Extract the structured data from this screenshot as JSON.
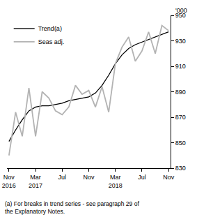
{
  "chart_data": {
    "type": "line",
    "y_label": "'000",
    "note": "(a) For breaks in trend series - see paragraph 29 of the Explanatory Notes.",
    "categories": [
      "Nov 2016",
      null,
      null,
      null,
      "Mar 2017",
      null,
      null,
      null,
      "Jul",
      null,
      null,
      null,
      "Nov",
      null,
      null,
      null,
      "Mar 2018",
      null,
      null,
      null,
      "Jul",
      null,
      null,
      null,
      "Nov"
    ],
    "series": [
      {
        "name": "Trend(a)",
        "color": "#000000",
        "values": [
          851,
          860,
          868,
          875,
          878,
          879,
          879,
          880,
          881,
          883,
          884,
          885,
          886,
          889,
          895,
          903,
          912,
          919,
          924,
          927,
          929,
          931,
          933,
          935,
          937
        ]
      },
      {
        "name": "Seas adj.",
        "color": "#b3b3b3",
        "values": [
          840,
          874,
          855,
          893,
          855,
          890,
          885,
          875,
          872,
          878,
          895,
          888,
          891,
          878,
          894,
          874,
          912,
          925,
          933,
          914,
          922,
          937,
          920,
          942,
          938
        ]
      }
    ],
    "ylim": [
      830,
      950
    ],
    "yticks": [
      830,
      850,
      870,
      890,
      910,
      930,
      950
    ],
    "grid": false,
    "legend": "top left"
  }
}
